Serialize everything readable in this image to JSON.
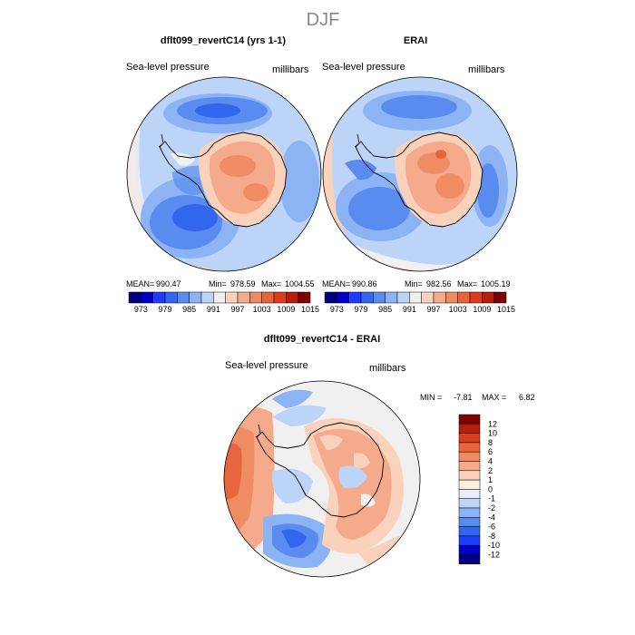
{
  "title": "DJF",
  "panels": [
    {
      "id": "model",
      "title": "dflt099_revertC14 (yrs 1-1)",
      "variable_label": "Sea-level pressure",
      "units_label": "millibars",
      "stats": {
        "mean_label": "MEAN=",
        "mean": "990.47",
        "min_label": "Min=",
        "min": "978.59",
        "max_label": "Max=",
        "max": "1004.55"
      }
    },
    {
      "id": "obs",
      "title": "ERAI",
      "variable_label": "Sea-level pressure",
      "units_label": "millibars",
      "stats": {
        "mean_label": "MEAN=",
        "mean": "990.86",
        "min_label": "Min=",
        "min": "982.56",
        "max_label": "Max=",
        "max": "1005.19"
      }
    },
    {
      "id": "diff",
      "title": "dflt099_revertC14 - ERAI",
      "variable_label": "Sea-level pressure",
      "units_label": "millibars",
      "stats": {
        "min_label": "MIN =",
        "min": "-7.81",
        "max_label": "MAX =",
        "max": "6.82"
      }
    }
  ],
  "abs_colorbar": {
    "colors": [
      "#00007f",
      "#0000c8",
      "#1e3cff",
      "#3366ee",
      "#5a8cf0",
      "#8cb4f5",
      "#bcd4f8",
      "#f0f0f0",
      "#fad2bc",
      "#f5aa8c",
      "#f08c64",
      "#e8643c",
      "#dc3c1e",
      "#b41e0a",
      "#800000"
    ],
    "tick_labels": [
      "973",
      "979",
      "985",
      "991",
      "997",
      "1003",
      "1009",
      "1015"
    ]
  },
  "diff_colorbar": {
    "colors": [
      "#00007f",
      "#0000c8",
      "#1e3cff",
      "#3366ee",
      "#5a8cf0",
      "#8cb4f5",
      "#bcd4f8",
      "#e6eefc",
      "#fdeee2",
      "#fad2bc",
      "#f5aa8c",
      "#f08c64",
      "#e8643c",
      "#dc3c1e",
      "#b41e0a",
      "#800000"
    ],
    "tick_labels": [
      "12",
      "10",
      "8",
      "6",
      "4",
      "2",
      "1",
      "0",
      "-1",
      "-2",
      "-4",
      "-6",
      "-8",
      "-10",
      "-12"
    ]
  },
  "chart_data": [
    {
      "type": "heatmap",
      "title": "dflt099_revertC14 (yrs 1-1)",
      "variable": "Sea-level pressure",
      "units": "millibars",
      "projection": "south polar stereographic",
      "mean": 990.47,
      "min": 978.59,
      "max": 1004.55,
      "levels": [
        973,
        976,
        979,
        982,
        985,
        988,
        991,
        994,
        997,
        1000,
        1003,
        1006,
        1009,
        1012,
        1015
      ]
    },
    {
      "type": "heatmap",
      "title": "ERAI",
      "variable": "Sea-level pressure",
      "units": "millibars",
      "projection": "south polar stereographic",
      "mean": 990.86,
      "min": 982.56,
      "max": 1005.19,
      "levels": [
        973,
        976,
        979,
        982,
        985,
        988,
        991,
        994,
        997,
        1000,
        1003,
        1006,
        1009,
        1012,
        1015
      ]
    },
    {
      "type": "heatmap",
      "title": "dflt099_revertC14 - ERAI",
      "variable": "Sea-level pressure",
      "units": "millibars",
      "projection": "south polar stereographic",
      "min": -7.81,
      "max": 6.82,
      "levels": [
        -12,
        -10,
        -8,
        -6,
        -4,
        -2,
        -1,
        0,
        1,
        2,
        4,
        6,
        8,
        10,
        12
      ]
    }
  ]
}
